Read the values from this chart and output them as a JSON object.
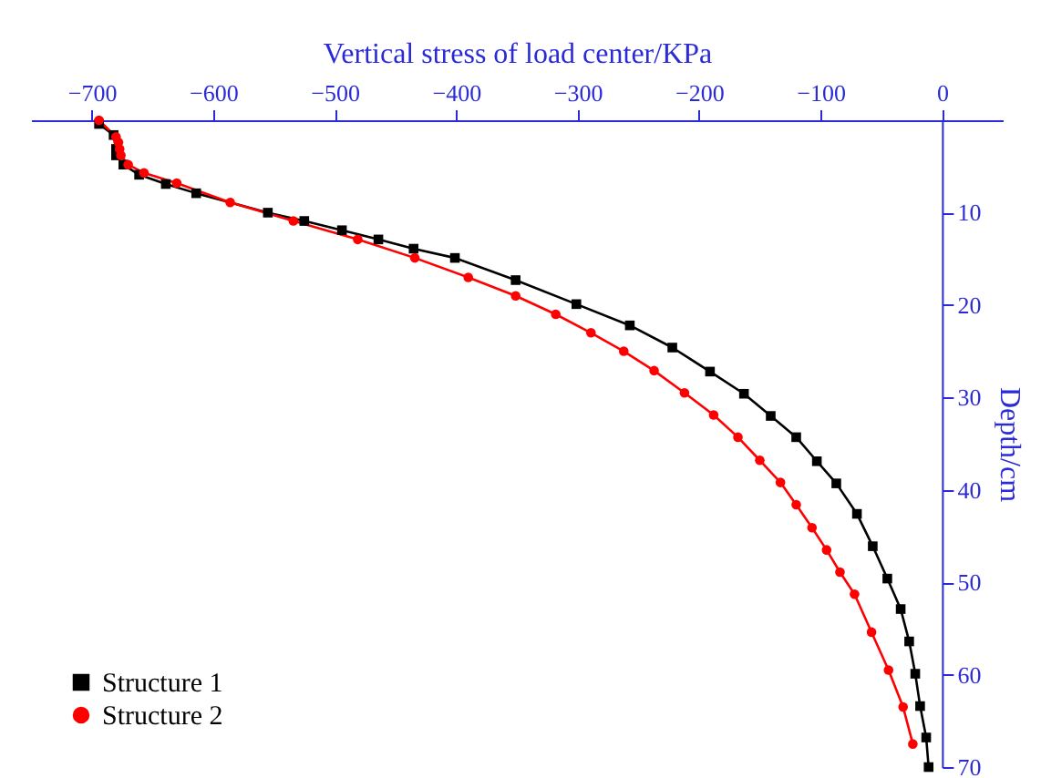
{
  "chart_data": {
    "type": "line",
    "xlabel": "Vertical stress of load center/KPa",
    "ylabel": "Depth/cm",
    "xlim": [
      -750,
      50
    ],
    "xticks": [
      -700,
      -600,
      -500,
      -400,
      -300,
      -200,
      -100,
      0
    ],
    "ylim": [
      70,
      0
    ],
    "yticks": [
      10,
      20,
      30,
      40,
      50,
      60,
      70
    ],
    "grid": false,
    "legend": "bottom left",
    "line_style": "solid",
    "series": [
      {
        "name": "Structure 1",
        "color": "#000000",
        "marker": "square",
        "x": [
          -694,
          -682,
          -680,
          -680,
          -674,
          -661,
          -639,
          -614,
          -555,
          -525,
          -494,
          -464,
          -435,
          -401,
          -351,
          -301,
          -257,
          -222,
          -191,
          -163,
          -141,
          -120,
          -103,
          -87,
          -70,
          -57,
          -45,
          -34,
          -27,
          -22,
          -18,
          -13,
          -11
        ],
        "values": [
          0.4,
          1.6,
          3.1,
          3.8,
          4.8,
          5.9,
          6.9,
          7.9,
          10.0,
          10.9,
          11.9,
          12.9,
          13.9,
          14.9,
          17.3,
          19.9,
          22.2,
          24.6,
          27.2,
          29.6,
          32.0,
          34.3,
          36.9,
          39.3,
          42.6,
          46.1,
          49.6,
          52.9,
          56.4,
          59.9,
          63.4,
          66.8,
          70.0
        ]
      },
      {
        "name": "Structure 2",
        "color": "#ff0000",
        "marker": "circle",
        "x": [
          -694,
          -680,
          -678,
          -677,
          -676,
          -670,
          -657,
          -630,
          -586,
          -534,
          -481,
          -434,
          -390,
          -351,
          -318,
          -289,
          -262,
          -237,
          -212,
          -188,
          -168,
          -150,
          -133,
          -120,
          -107,
          -95,
          -84,
          -72,
          -58,
          -44,
          -32,
          -24
        ],
        "values": [
          0.0,
          1.8,
          2.4,
          3.1,
          3.8,
          4.8,
          5.7,
          6.8,
          8.9,
          10.9,
          12.9,
          14.9,
          17.0,
          19.0,
          21.0,
          23.0,
          25.0,
          27.1,
          29.5,
          31.9,
          34.3,
          36.8,
          39.2,
          41.6,
          44.1,
          46.5,
          48.9,
          51.3,
          55.4,
          59.5,
          63.5,
          67.5
        ]
      }
    ]
  }
}
